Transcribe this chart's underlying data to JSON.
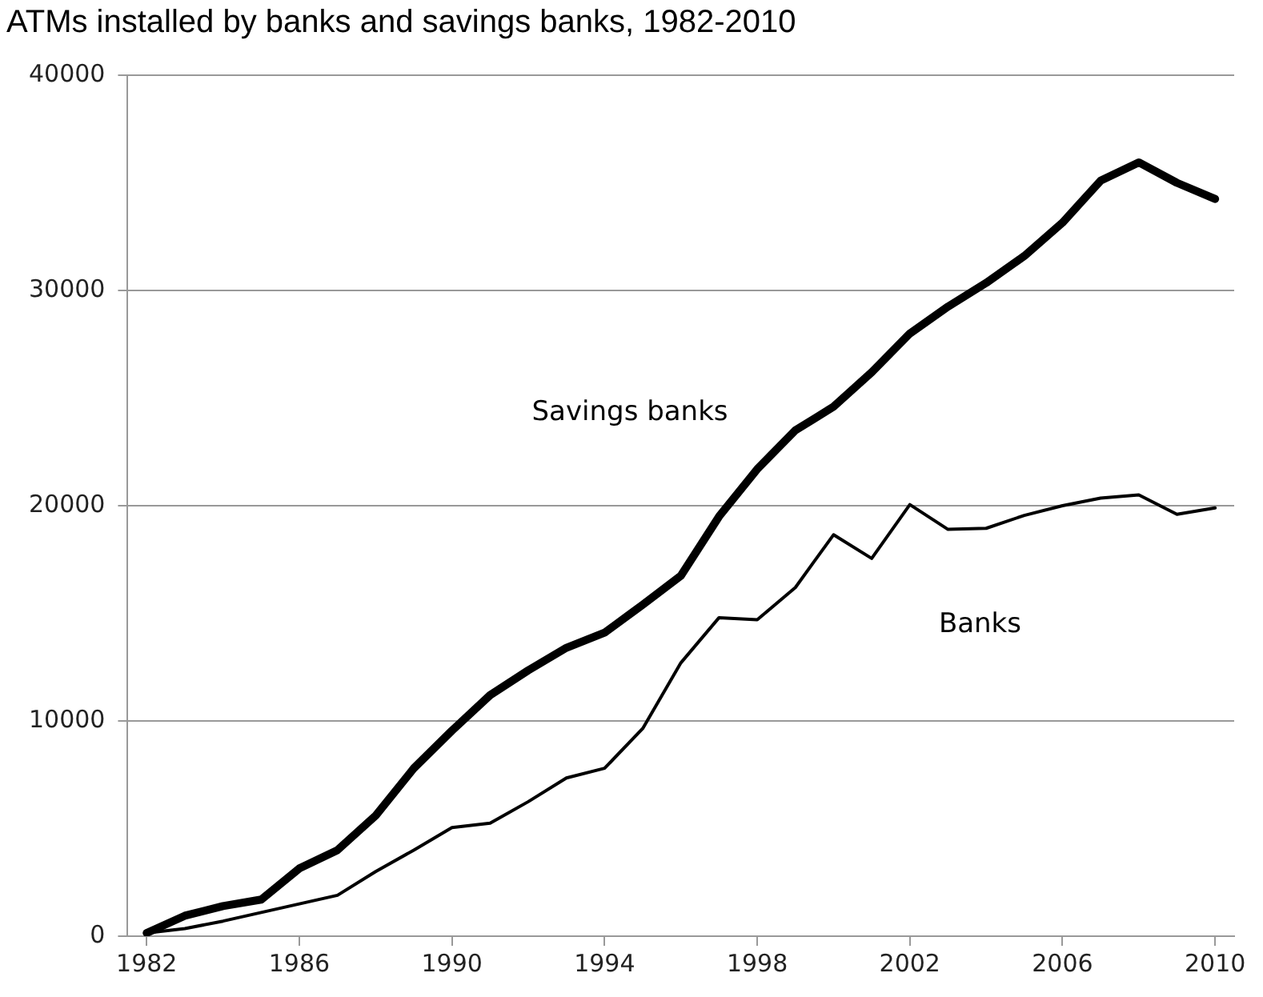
{
  "chart_data": {
    "type": "line",
    "title": "ATMs installed by banks and savings banks, 1982-2010",
    "x": [
      1982,
      1983,
      1984,
      1985,
      1986,
      1987,
      1988,
      1989,
      1990,
      1991,
      1992,
      1993,
      1994,
      1995,
      1996,
      1997,
      1998,
      1999,
      2000,
      2001,
      2002,
      2003,
      2004,
      2005,
      2006,
      2007,
      2008,
      2009,
      2010
    ],
    "series": [
      {
        "name": "Savings banks",
        "color": "#000000",
        "values": [
          150,
          950,
          1400,
          1700,
          3150,
          4000,
          5600,
          7800,
          9550,
          11200,
          12350,
          13400,
          14100,
          15400,
          16750,
          19500,
          21700,
          23500,
          24600,
          26200,
          28000,
          29250,
          30350,
          31600,
          33150,
          35100,
          35950,
          35000,
          34250
        ]
      },
      {
        "name": "Banks",
        "color": "#000000",
        "values": [
          150,
          350,
          700,
          1100,
          1500,
          1900,
          3000,
          4000,
          5050,
          5250,
          6250,
          7350,
          7800,
          9650,
          12700,
          14800,
          14700,
          16200,
          18650,
          17550,
          20050,
          18900,
          18950,
          19550,
          20000,
          20350,
          20500,
          19600,
          19900
        ]
      }
    ],
    "xlim": [
      1981.5,
      2010.5
    ],
    "xticks": [
      1982,
      1986,
      1990,
      1994,
      1998,
      2002,
      2006,
      2010
    ],
    "ylim": [
      0,
      40000
    ],
    "yticks": [
      0,
      10000,
      20000,
      30000,
      40000
    ],
    "grid": "y",
    "legend": false,
    "marker": "none",
    "line_style": "solid"
  }
}
